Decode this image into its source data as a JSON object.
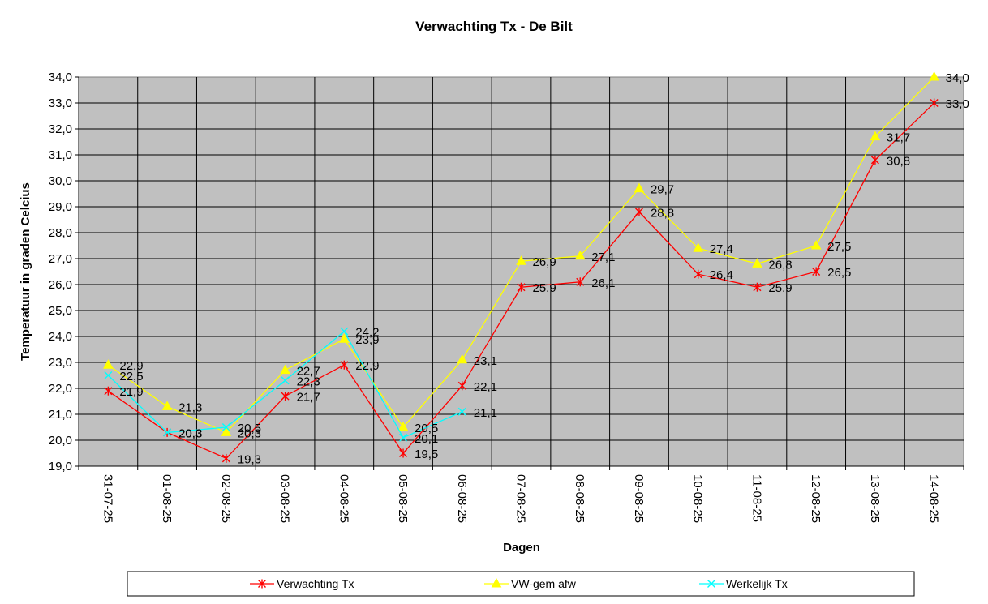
{
  "chart_data": {
    "type": "line",
    "title": "Verwachting Tx - De Bilt",
    "xlabel": "Dagen",
    "ylabel": "Temperatuur in graden Celcius",
    "ylim": [
      19.0,
      34.0
    ],
    "ytick_step": 1.0,
    "ytick_labels": [
      "19,0",
      "20,0",
      "21,0",
      "22,0",
      "23,0",
      "24,0",
      "25,0",
      "26,0",
      "27,0",
      "28,0",
      "29,0",
      "30,0",
      "31,0",
      "32,0",
      "33,0",
      "34,0"
    ],
    "grid": true,
    "plot_background": "#c0c0c0",
    "legend_position": "bottom",
    "categories": [
      "31-07-25",
      "01-08-25",
      "02-08-25",
      "03-08-25",
      "04-08-25",
      "05-08-25",
      "06-08-25",
      "07-08-25",
      "08-08-25",
      "09-08-25",
      "10-08-25",
      "11-08-25",
      "12-08-25",
      "13-08-25",
      "14-08-25"
    ],
    "series": [
      {
        "name": "Verwachting Tx",
        "color": "#ff0000",
        "marker": "asterisk",
        "values": [
          21.9,
          20.3,
          19.3,
          21.7,
          22.9,
          19.5,
          22.1,
          25.9,
          26.1,
          28.8,
          26.4,
          25.9,
          26.5,
          30.8,
          33.0
        ],
        "labels": [
          "21,9",
          "20,3",
          "19,3",
          "21,7",
          "22,9",
          "19,5",
          "22,1",
          "25,9",
          "26,1",
          "28,8",
          "26,4",
          "25,9",
          "26,5",
          "30,8",
          "33,0"
        ]
      },
      {
        "name": "VW-gem afw",
        "color": "#ffff00",
        "marker": "triangle",
        "values": [
          22.9,
          21.3,
          20.3,
          22.7,
          23.9,
          20.5,
          23.1,
          26.9,
          27.1,
          29.7,
          27.4,
          26.8,
          27.5,
          31.7,
          34.0
        ],
        "labels": [
          "22,9",
          "21,3",
          "20,3",
          "22,7",
          "23,9",
          "20,5",
          "23,1",
          "26,9",
          "27,1",
          "29,7",
          "27,4",
          "26,8",
          "27,5",
          "31,7",
          "34,0"
        ]
      },
      {
        "name": "Werkelijk Tx",
        "color": "#00ffff",
        "marker": "x",
        "values": [
          22.5,
          20.3,
          20.5,
          22.3,
          24.2,
          20.1,
          21.1,
          null,
          null,
          null,
          null,
          null,
          null,
          null,
          null
        ],
        "labels": [
          "22,5",
          "20,3",
          "20,5",
          "22,3",
          "24,2",
          "20,1",
          "21,1",
          null,
          null,
          null,
          null,
          null,
          null,
          null,
          null
        ]
      }
    ]
  }
}
